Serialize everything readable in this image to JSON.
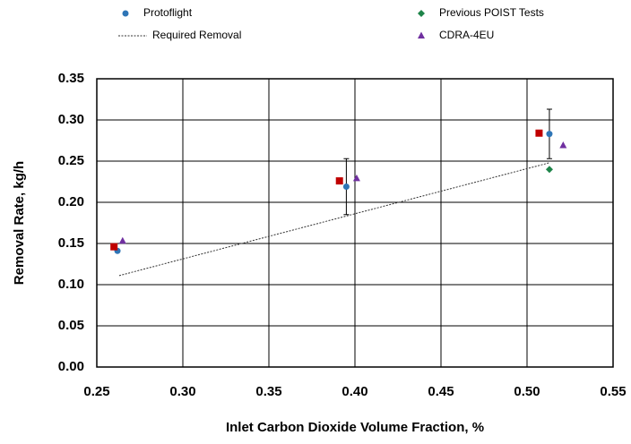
{
  "chart_data": {
    "type": "scatter",
    "xlabel": "Inlet Carbon Dioxide Volume Fraction, %",
    "ylabel": "Removal Rate, kg/h",
    "xlim": [
      0.25,
      0.55
    ],
    "ylim": [
      0,
      0.35
    ],
    "xticks": [
      0.25,
      {
        "value": 0.3,
        "label": "0.30"
      },
      0.35,
      {
        "value": 0.4,
        "label": "0.40"
      },
      0.45,
      {
        "value": 0.5,
        "label": "0.50"
      },
      0.55
    ],
    "yticks": [
      {
        "value": 0,
        "label": "0.00"
      },
      0.05,
      {
        "value": 0.1,
        "label": "0.10"
      },
      0.15,
      {
        "value": 0.2,
        "label": "0.20"
      },
      0.25,
      {
        "value": 0.3,
        "label": "0.30"
      },
      0.35
    ],
    "grid": true,
    "series": [
      {
        "name": "Protoflight",
        "color": "#2e75b6",
        "marker": "circle",
        "x": [
          0.262,
          0.395,
          0.513
        ],
        "values": [
          0.141,
          0.219,
          0.283
        ],
        "errors": [
          null,
          0.034,
          0.03
        ]
      },
      {
        "name": "Previous POIST Tests",
        "color": "#1e8449",
        "marker": "diamond",
        "x": [
          0.513
        ],
        "values": [
          0.24
        ]
      },
      {
        "name": "Required Removal",
        "color": "#333333",
        "line": "dotted",
        "x": [
          0.263,
          0.513
        ],
        "values": [
          0.111,
          0.248
        ]
      },
      {
        "name": "CDRA-4EU",
        "color": "#7030a0",
        "marker": "triangle",
        "x": [
          0.265,
          0.401,
          0.521
        ],
        "values": [
          0.153,
          0.229,
          0.269
        ]
      },
      {
        "color": "#c00000",
        "marker": "square",
        "x": [
          0.26,
          0.391,
          0.507
        ],
        "values": [
          0.146,
          0.226,
          0.284
        ]
      }
    ]
  }
}
